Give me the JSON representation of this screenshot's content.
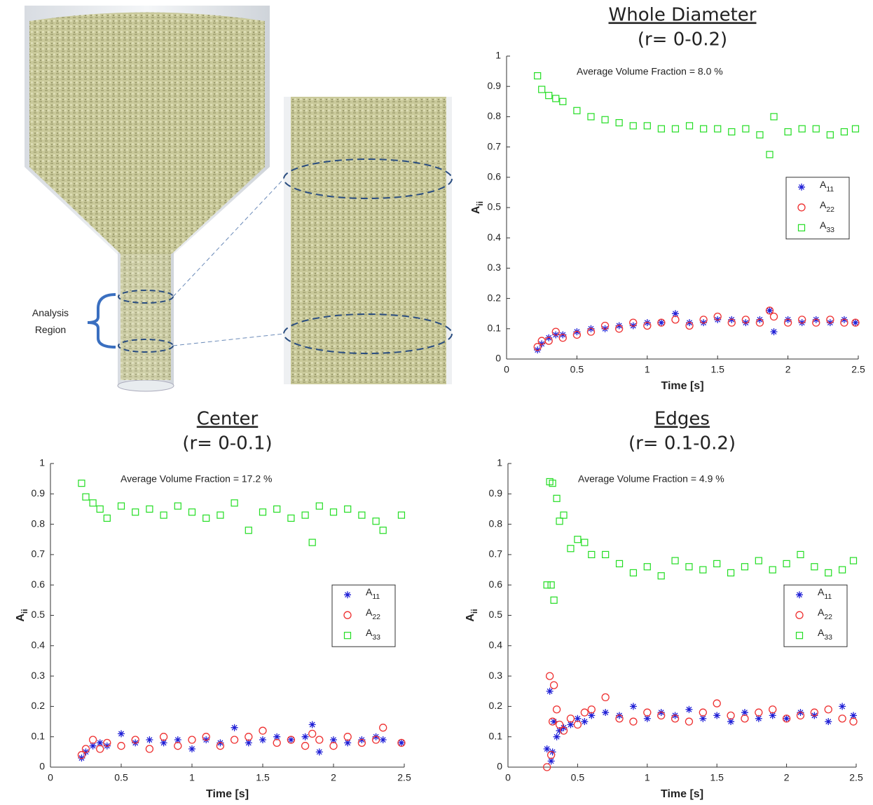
{
  "illustration": {
    "label": "Analysis Region"
  },
  "chart_data": [
    {
      "type": "scatter",
      "title": "Whole Diameter",
      "subtitle": "(r= 0-0.2)",
      "annotation": "Average Volume Fraction = 8.0 %",
      "xlabel": "Time [s]",
      "ylabel": "Aii",
      "legend": "right",
      "xlim": [
        0,
        2.5
      ],
      "ylim": [
        0,
        1
      ],
      "xticks": [
        0,
        0.5,
        1,
        1.5,
        2,
        2.5
      ],
      "yticks": [
        0,
        0.1,
        0.2,
        0.3,
        0.4,
        0.5,
        0.6,
        0.7,
        0.8,
        0.9,
        1
      ],
      "x": [
        0.22,
        0.25,
        0.3,
        0.35,
        0.4,
        0.5,
        0.6,
        0.7,
        0.8,
        0.9,
        1.0,
        1.1,
        1.2,
        1.3,
        1.4,
        1.5,
        1.6,
        1.7,
        1.8,
        1.87,
        1.9,
        2.0,
        2.1,
        2.2,
        2.3,
        2.4,
        2.48
      ],
      "series": [
        {
          "name": "A11",
          "color": "#1f1fd6",
          "marker": "asterisk",
          "values": [
            0.03,
            0.05,
            0.07,
            0.08,
            0.08,
            0.09,
            0.1,
            0.1,
            0.11,
            0.11,
            0.12,
            0.12,
            0.15,
            0.12,
            0.12,
            0.13,
            0.13,
            0.12,
            0.13,
            0.16,
            0.09,
            0.13,
            0.12,
            0.13,
            0.12,
            0.13,
            0.12
          ]
        },
        {
          "name": "A22",
          "color": "#ee3030",
          "marker": "circle",
          "values": [
            0.04,
            0.06,
            0.06,
            0.09,
            0.07,
            0.08,
            0.09,
            0.11,
            0.1,
            0.12,
            0.11,
            0.12,
            0.13,
            0.11,
            0.13,
            0.14,
            0.12,
            0.13,
            0.12,
            0.16,
            0.14,
            0.12,
            0.13,
            0.12,
            0.13,
            0.12,
            0.12
          ]
        },
        {
          "name": "A33",
          "color": "#22dd22",
          "marker": "square",
          "values": [
            0.935,
            0.89,
            0.87,
            0.86,
            0.85,
            0.82,
            0.8,
            0.79,
            0.78,
            0.77,
            0.77,
            0.76,
            0.76,
            0.77,
            0.76,
            0.76,
            0.75,
            0.76,
            0.74,
            0.675,
            0.8,
            0.75,
            0.76,
            0.76,
            0.74,
            0.75,
            0.76
          ]
        }
      ]
    },
    {
      "type": "scatter",
      "title": "Center",
      "subtitle": "(r= 0-0.1)",
      "annotation": "Average Volume Fraction = 17.2 %",
      "xlabel": "Time [s]",
      "ylabel": "Aii",
      "legend": "right",
      "xlim": [
        0,
        2.5
      ],
      "ylim": [
        0,
        1
      ],
      "xticks": [
        0,
        0.5,
        1,
        1.5,
        2,
        2.5
      ],
      "yticks": [
        0,
        0.1,
        0.2,
        0.3,
        0.4,
        0.5,
        0.6,
        0.7,
        0.8,
        0.9,
        1
      ],
      "x": [
        0.22,
        0.25,
        0.3,
        0.35,
        0.4,
        0.5,
        0.6,
        0.7,
        0.8,
        0.9,
        1.0,
        1.1,
        1.2,
        1.3,
        1.4,
        1.5,
        1.6,
        1.7,
        1.8,
        1.85,
        1.9,
        2.0,
        2.1,
        2.2,
        2.3,
        2.35,
        2.48
      ],
      "series": [
        {
          "name": "A11",
          "color": "#1f1fd6",
          "marker": "asterisk",
          "values": [
            0.03,
            0.05,
            0.07,
            0.08,
            0.07,
            0.11,
            0.08,
            0.09,
            0.08,
            0.09,
            0.06,
            0.09,
            0.08,
            0.13,
            0.08,
            0.09,
            0.1,
            0.09,
            0.1,
            0.14,
            0.05,
            0.09,
            0.08,
            0.09,
            0.1,
            0.09,
            0.08
          ]
        },
        {
          "name": "A22",
          "color": "#ee3030",
          "marker": "circle",
          "values": [
            0.04,
            0.06,
            0.09,
            0.06,
            0.08,
            0.07,
            0.09,
            0.06,
            0.1,
            0.07,
            0.09,
            0.1,
            0.07,
            0.09,
            0.1,
            0.12,
            0.08,
            0.09,
            0.07,
            0.11,
            0.09,
            0.07,
            0.1,
            0.08,
            0.09,
            0.13,
            0.08
          ]
        },
        {
          "name": "A33",
          "color": "#22dd22",
          "marker": "square",
          "values": [
            0.935,
            0.89,
            0.87,
            0.85,
            0.82,
            0.86,
            0.84,
            0.85,
            0.83,
            0.86,
            0.84,
            0.82,
            0.83,
            0.87,
            0.78,
            0.84,
            0.85,
            0.82,
            0.83,
            0.74,
            0.86,
            0.84,
            0.85,
            0.83,
            0.81,
            0.78,
            0.83
          ]
        }
      ]
    },
    {
      "type": "scatter",
      "title": "Edges",
      "subtitle": "(r= 0.1-0.2)",
      "annotation": "Average Volume Fraction = 4.9 %",
      "xlabel": "Time [s]",
      "ylabel": "Aii",
      "legend": "right",
      "xlim": [
        0,
        2.5
      ],
      "ylim": [
        0,
        1
      ],
      "xticks": [
        0,
        0.5,
        1,
        1.5,
        2,
        2.5
      ],
      "yticks": [
        0,
        0.1,
        0.2,
        0.3,
        0.4,
        0.5,
        0.6,
        0.7,
        0.8,
        0.9,
        1
      ],
      "x": [
        0.28,
        0.3,
        0.31,
        0.32,
        0.33,
        0.35,
        0.37,
        0.4,
        0.45,
        0.5,
        0.55,
        0.6,
        0.7,
        0.8,
        0.9,
        1.0,
        1.1,
        1.2,
        1.3,
        1.4,
        1.5,
        1.6,
        1.7,
        1.8,
        1.9,
        2.0,
        2.1,
        2.2,
        2.3,
        2.4,
        2.48
      ],
      "series": [
        {
          "name": "A11",
          "color": "#1f1fd6",
          "marker": "asterisk",
          "values": [
            0.06,
            0.25,
            0.02,
            0.05,
            0.15,
            0.1,
            0.12,
            0.13,
            0.14,
            0.16,
            0.15,
            0.17,
            0.18,
            0.17,
            0.2,
            0.16,
            0.18,
            0.17,
            0.19,
            0.16,
            0.17,
            0.15,
            0.18,
            0.16,
            0.17,
            0.16,
            0.18,
            0.17,
            0.15,
            0.2,
            0.17
          ]
        },
        {
          "name": "A22",
          "color": "#ee3030",
          "marker": "circle",
          "values": [
            0.0,
            0.3,
            0.04,
            0.15,
            0.27,
            0.19,
            0.14,
            0.12,
            0.16,
            0.14,
            0.18,
            0.19,
            0.23,
            0.16,
            0.15,
            0.18,
            0.17,
            0.16,
            0.15,
            0.18,
            0.21,
            0.17,
            0.16,
            0.18,
            0.19,
            0.16,
            0.17,
            0.18,
            0.19,
            0.16,
            0.15
          ]
        },
        {
          "name": "A33",
          "color": "#22dd22",
          "marker": "square",
          "values": [
            0.6,
            0.94,
            0.6,
            0.935,
            0.55,
            0.885,
            0.81,
            0.83,
            0.72,
            0.75,
            0.74,
            0.7,
            0.7,
            0.67,
            0.64,
            0.66,
            0.63,
            0.68,
            0.66,
            0.65,
            0.67,
            0.64,
            0.66,
            0.68,
            0.65,
            0.67,
            0.7,
            0.66,
            0.64,
            0.65,
            0.68
          ]
        }
      ]
    }
  ]
}
